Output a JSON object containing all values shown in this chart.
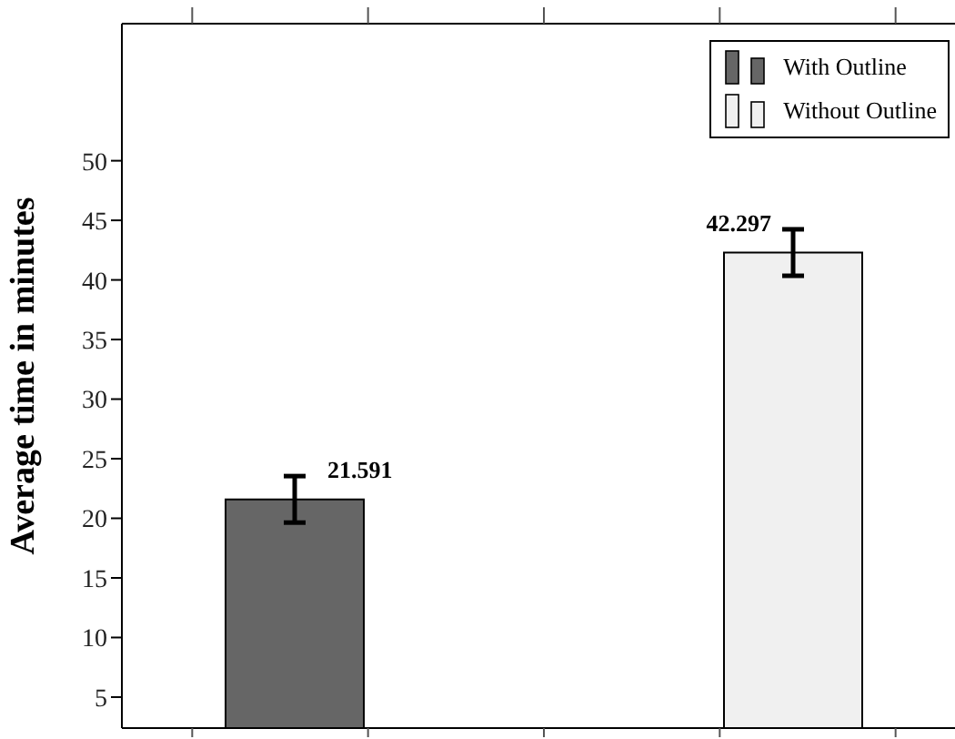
{
  "chart_data": {
    "type": "bar",
    "ylabel": "Average time in minutes",
    "categories": [
      null
    ],
    "ylim": [
      2.4,
      61.5
    ],
    "yticks": [
      5,
      10,
      15,
      20,
      25,
      30,
      35,
      40,
      45,
      50
    ],
    "series": [
      {
        "name": "With Outline",
        "color": "#666666",
        "values": [
          21.591
        ],
        "errors": [
          1.95
        ]
      },
      {
        "name": "Without Outline",
        "color": "#f0f0f0",
        "values": [
          42.297
        ],
        "errors": [
          1.95
        ]
      }
    ],
    "data_labels": true,
    "legend": "top right"
  }
}
